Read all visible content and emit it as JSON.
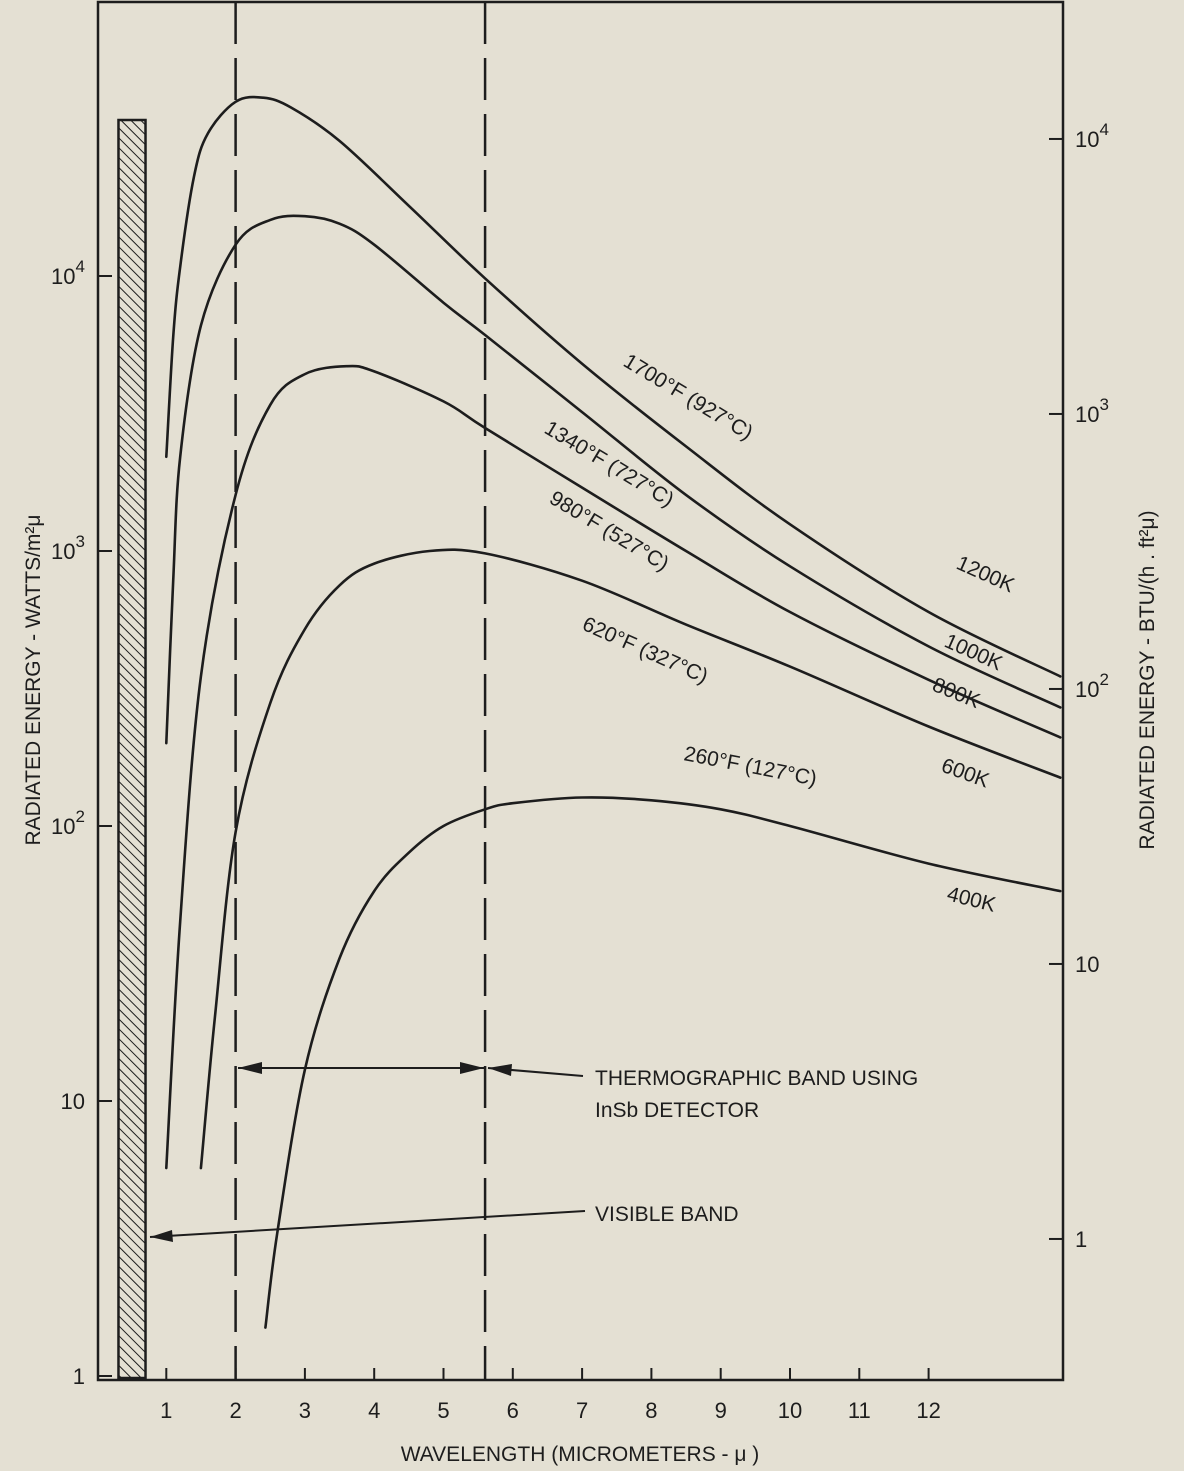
{
  "colors": {
    "background": "#e4e0d3",
    "ink": "#1d1d1d"
  },
  "chart_data": {
    "type": "line",
    "title": "",
    "xlabel": "WAVELENGTH (MICROMETERS - μ )",
    "ylabel": "RADIATED ENERGY - WATTS/m²μ",
    "y2label": "RADIATED ENERGY - BTU/(h . ft²μ)",
    "yscale": "log",
    "xlim": [
      0,
      14
    ],
    "ylim": [
      1,
      75000
    ],
    "grid": false,
    "x_ticks": [
      "1",
      "2",
      "3",
      "4",
      "5",
      "6",
      "7",
      "8",
      "9",
      "10",
      "11",
      "12"
    ],
    "y_ticks": [
      {
        "value": 1,
        "base": "1",
        "exp": ""
      },
      {
        "value": 10,
        "base": "10",
        "exp": ""
      },
      {
        "value": 100,
        "base": "10",
        "exp": "2"
      },
      {
        "value": 1000,
        "base": "10",
        "exp": "3"
      },
      {
        "value": 10000,
        "base": "10",
        "exp": "4"
      }
    ],
    "y2_ticks": [
      {
        "value": 3.15,
        "base": "1",
        "exp": ""
      },
      {
        "value": 31.5,
        "base": "10",
        "exp": ""
      },
      {
        "value": 315,
        "base": "10",
        "exp": "2"
      },
      {
        "value": 3150,
        "base": "10",
        "exp": "3"
      },
      {
        "value": 31500,
        "base": "10",
        "exp": "4"
      }
    ],
    "series": [
      {
        "name": "1700°F (927°C)",
        "kelvin": "1200K",
        "x": [
          1.0,
          1.1,
          1.2,
          1.4,
          1.6,
          2.0,
          2.4,
          2.8,
          3.5,
          4.5,
          5.6,
          7.0,
          8.5,
          10.0,
          12.0,
          13.9
        ],
        "y": [
          2200,
          6000,
          10800,
          23000,
          33000,
          43000,
          44500,
          41000,
          31000,
          18000,
          9800,
          4800,
          2400,
          1250,
          600,
          350
        ]
      },
      {
        "name": "1340°F (727°C)",
        "kelvin": "1000K",
        "x": [
          1.0,
          1.1,
          1.2,
          1.5,
          2.0,
          2.5,
          3.0,
          3.5,
          4.0,
          5.0,
          5.6,
          7.0,
          8.5,
          10.0,
          12.0,
          13.9
        ],
        "y": [
          200,
          780,
          2200,
          6600,
          13000,
          16000,
          16500,
          15500,
          13000,
          8000,
          6100,
          3200,
          1600,
          880,
          450,
          270
        ]
      },
      {
        "name": "980°F (527°C)",
        "kelvin": "800K",
        "x": [
          1.0,
          1.2,
          1.5,
          2.0,
          2.5,
          3.0,
          3.6,
          4.0,
          5.0,
          5.6,
          7.0,
          8.5,
          10.0,
          12.0,
          13.9
        ],
        "y": [
          5.7,
          45,
          350,
          1600,
          3400,
          4400,
          4700,
          4500,
          3500,
          2800,
          1700,
          1000,
          600,
          340,
          210
        ]
      },
      {
        "name": "620°F (327°C)",
        "kelvin": "600K",
        "x": [
          1.5,
          1.7,
          2.0,
          2.5,
          3.0,
          3.5,
          4.0,
          4.8,
          5.6,
          7.0,
          8.5,
          10.0,
          12.0,
          13.9
        ],
        "y": [
          5.7,
          20,
          95,
          280,
          520,
          750,
          900,
          1000,
          980,
          780,
          540,
          380,
          230,
          150
        ]
      },
      {
        "name": "260°F (127°C)",
        "kelvin": "400K",
        "x": [
          2.43,
          2.6,
          3.0,
          3.5,
          4.0,
          4.5,
          5.0,
          5.6,
          6.0,
          7.0,
          8.0,
          9.0,
          10.0,
          12.0,
          13.9
        ],
        "y": [
          1.5,
          3.3,
          13,
          33,
          58,
          80,
          100,
          115,
          121,
          127,
          124,
          115,
          100,
          73,
          58
        ]
      }
    ],
    "bands": {
      "visible_start": 0.31,
      "visible_end": 0.7,
      "thermo_start": 2.0,
      "thermo_end": 5.6
    },
    "annotations": {
      "thermo_line1": "THERMOGRAPHIC BAND USING",
      "thermo_line2": "InSb DETECTOR",
      "visible": "VISIBLE BAND"
    }
  }
}
